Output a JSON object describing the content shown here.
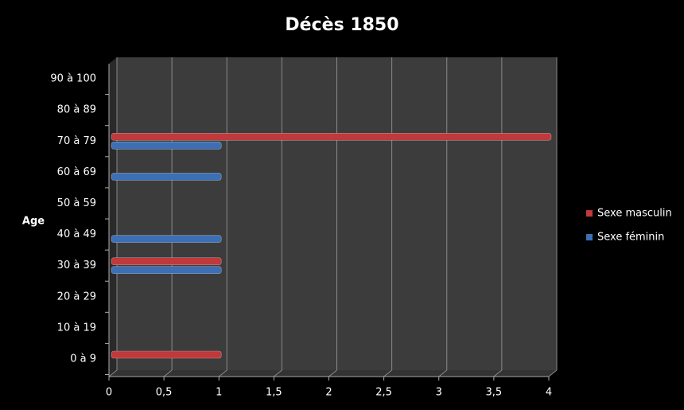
{
  "chart_data": {
    "type": "hbar",
    "title": "Décès 1850",
    "y_label": "Age",
    "categories": [
      "0 à 9",
      "10 à 19",
      "20 à 29",
      "30 à 39",
      "40 à 49",
      "50 à 59",
      "60 à 69",
      "70 à 79",
      "80 à 89",
      "90 à 100"
    ],
    "series": [
      {
        "name": "Sexe masculin",
        "color": "#c0393b",
        "values": [
          1,
          0,
          0,
          1,
          0,
          0,
          0,
          4,
          0,
          0
        ]
      },
      {
        "name": "Sexe féminin",
        "color": "#3d6fb5",
        "values": [
          0,
          0,
          0,
          1,
          1,
          0,
          1,
          1,
          0,
          0
        ]
      }
    ],
    "xlim": [
      0,
      4
    ],
    "xticks": [
      0,
      {
        "value": 0.5,
        "label": "0,5"
      },
      1,
      {
        "value": 1.5,
        "label": "1,5"
      },
      2,
      {
        "value": 2.5,
        "label": "2,5"
      },
      3,
      {
        "value": 3.5,
        "label": "3,5"
      },
      4
    ],
    "grid": true,
    "legend": "right"
  }
}
